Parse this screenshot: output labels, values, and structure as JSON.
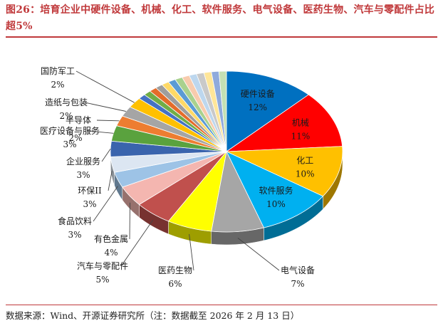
{
  "figure_title": "图26：培育企业中硬件设备、机械、化工、软件服务、电气设备、医药生物、汽车与零配件占比超5%",
  "source_note": "数据来源：Wind、开源证券研究所（注：数据截至 2026 年 2 月 13 日）",
  "chart_data": {
    "type": "pie",
    "style": "3d-pie",
    "title": "",
    "slices": [
      {
        "label": "硬件设备",
        "value": 12,
        "display": "12%",
        "color": "#0070c0"
      },
      {
        "label": "机械",
        "value": 11,
        "display": "11%",
        "color": "#ff0000"
      },
      {
        "label": "化工",
        "value": 10,
        "display": "10%",
        "color": "#ffc000"
      },
      {
        "label": "软件服务",
        "value": 10,
        "display": "10%",
        "color": "#00b0f0"
      },
      {
        "label": "电气设备",
        "value": 7,
        "display": "7%",
        "color": "#a6a6a6"
      },
      {
        "label": "医药生物",
        "value": 6,
        "display": "6%",
        "color": "#ffff00"
      },
      {
        "label": "汽车与零配件",
        "value": 5,
        "display": "5%",
        "color": "#c0504d"
      },
      {
        "label": "有色金属",
        "value": 4,
        "display": "4%",
        "color": "#f4b6b0"
      },
      {
        "label": "食品饮料",
        "value": 3,
        "display": "3%",
        "color": "#9dc3e6"
      },
      {
        "label": "环保II",
        "value": 3,
        "display": "3%",
        "color": "#dce6f2"
      },
      {
        "label": "企业服务",
        "value": 3,
        "display": "3%",
        "color": "#3a64ad"
      },
      {
        "label": "医疗设备与服务",
        "value": 3,
        "display": "3%",
        "color": "#5aa23e"
      },
      {
        "label": "半导体",
        "value": 2,
        "display": "2%",
        "color": "#ed7d31"
      },
      {
        "label": "造纸与包装",
        "value": 2,
        "display": "2%",
        "color": "#a5a5a5"
      },
      {
        "label": "国防军工",
        "value": 2,
        "display": "2%",
        "color": "#ffc000"
      },
      {
        "label": "",
        "value": 1,
        "display": "",
        "color": "#4472c4"
      },
      {
        "label": "",
        "value": 1,
        "display": "",
        "color": "#70ad47"
      },
      {
        "label": "",
        "value": 1,
        "display": "",
        "color": "#e46c2a"
      },
      {
        "label": "",
        "value": 1,
        "display": "",
        "color": "#9e9e9e"
      },
      {
        "label": "",
        "value": 1,
        "display": "",
        "color": "#ffd966"
      },
      {
        "label": "",
        "value": 1,
        "display": "",
        "color": "#5b9bd5"
      },
      {
        "label": "",
        "value": 1,
        "display": "",
        "color": "#a9d18e"
      },
      {
        "label": "",
        "value": 1,
        "display": "",
        "color": "#f8cbad"
      },
      {
        "label": "",
        "value": 1,
        "display": "",
        "color": "#bdd7ee"
      },
      {
        "label": "",
        "value": 1,
        "display": "",
        "color": "#c9c9c9"
      },
      {
        "label": "",
        "value": 1,
        "display": "",
        "color": "#ffe699"
      },
      {
        "label": "",
        "value": 1,
        "display": "",
        "color": "#8faadc"
      },
      {
        "label": "",
        "value": 1,
        "display": "",
        "color": "#c5e0b4"
      }
    ]
  }
}
